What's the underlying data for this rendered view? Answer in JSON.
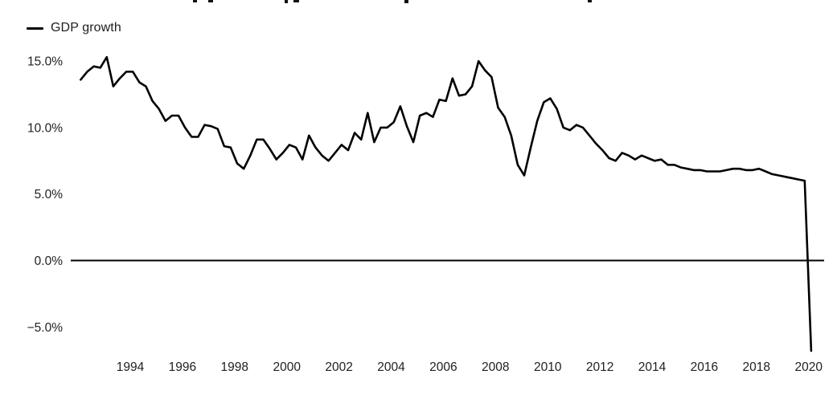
{
  "page": {
    "background": "#ffffff"
  },
  "chart": {
    "legend": {
      "label": "GDP growth",
      "swatch_color": "#000000"
    },
    "line_color": "#000000",
    "zero_line_color": "#000000",
    "axis_text_color": "#212121",
    "y_axis": {
      "ticks": [
        {
          "label": "15.0%",
          "value": 15
        },
        {
          "label": "10.0%",
          "value": 10
        },
        {
          "label": "5.0%",
          "value": 5
        },
        {
          "label": "0.0%",
          "value": 0
        },
        {
          "label": "−5.0%",
          "value": -5
        }
      ]
    },
    "x_axis": {
      "ticks": [
        {
          "label": "1994",
          "value": 1994
        },
        {
          "label": "1996",
          "value": 1996
        },
        {
          "label": "1998",
          "value": 1998
        },
        {
          "label": "2000",
          "value": 2000
        },
        {
          "label": "2002",
          "value": 2002
        },
        {
          "label": "2004",
          "value": 2004
        },
        {
          "label": "2006",
          "value": 2006
        },
        {
          "label": "2008",
          "value": 2008
        },
        {
          "label": "2010",
          "value": 2010
        },
        {
          "label": "2012",
          "value": 2012
        },
        {
          "label": "2014",
          "value": 2014
        },
        {
          "label": "2016",
          "value": 2016
        },
        {
          "label": "2018",
          "value": 2018
        },
        {
          "label": "2020",
          "value": 2020
        }
      ]
    }
  },
  "chart_data": {
    "type": "line",
    "title": "",
    "xlabel": "",
    "ylabel": "",
    "y_unit": "percent",
    "x_unit": "quarter",
    "x_start_year": 1992.0,
    "x_step_years": 0.25,
    "ylim": [
      -7.5,
      16
    ],
    "y_ticks": [
      15,
      10,
      5,
      0,
      -5
    ],
    "x_ticks": [
      1994,
      1996,
      1998,
      2000,
      2002,
      2004,
      2006,
      2008,
      2010,
      2012,
      2014,
      2016,
      2018,
      2020
    ],
    "grid": false,
    "legend_position": "top-left",
    "series": [
      {
        "name": "GDP growth",
        "values": [
          13.6,
          14.2,
          14.6,
          14.5,
          15.3,
          13.1,
          13.7,
          14.2,
          14.2,
          13.4,
          13.1,
          12.0,
          11.4,
          10.5,
          10.9,
          10.9,
          10.0,
          9.3,
          9.3,
          10.2,
          10.1,
          9.9,
          8.6,
          8.5,
          7.3,
          6.9,
          7.9,
          9.1,
          9.1,
          8.4,
          7.6,
          8.1,
          8.7,
          8.5,
          7.6,
          9.4,
          8.5,
          7.9,
          7.5,
          8.1,
          8.7,
          8.3,
          9.6,
          9.1,
          11.1,
          8.9,
          10.0,
          10.0,
          10.4,
          11.6,
          10.1,
          8.9,
          10.9,
          11.1,
          10.8,
          12.1,
          12.0,
          13.7,
          12.4,
          12.5,
          13.1,
          15.0,
          14.3,
          13.8,
          11.5,
          10.8,
          9.4,
          7.2,
          6.4,
          8.5,
          10.5,
          11.9,
          12.2,
          11.4,
          10.0,
          9.8,
          10.2,
          10.0,
          9.4,
          8.8,
          8.3,
          7.7,
          7.5,
          8.1,
          7.9,
          7.6,
          7.9,
          7.7,
          7.5,
          7.6,
          7.2,
          7.2,
          7.0,
          6.9,
          6.8,
          6.8,
          6.7,
          6.7,
          6.7,
          6.8,
          6.9,
          6.9,
          6.8,
          6.8,
          6.9,
          6.7,
          6.5,
          6.4,
          6.3,
          6.2,
          6.1,
          6.0,
          -6.8
        ]
      }
    ]
  }
}
